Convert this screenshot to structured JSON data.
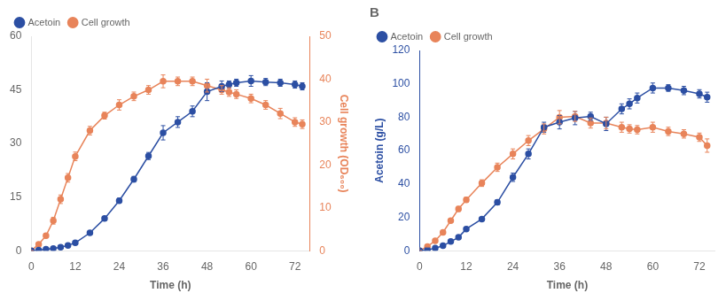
{
  "chart_data": [
    {
      "type": "line",
      "x": [
        0,
        2,
        4,
        6,
        8,
        10,
        12,
        16,
        20,
        24,
        28,
        32,
        36,
        40,
        44,
        48,
        52,
        54,
        56,
        60,
        64,
        68,
        72,
        74
      ],
      "xlabel": "Time (h)",
      "xlim": [
        0,
        76
      ],
      "xticks": [
        0,
        12,
        24,
        36,
        48,
        60,
        72
      ],
      "ylim": [
        0,
        60
      ],
      "yticks": [
        0,
        15,
        30,
        45,
        60
      ],
      "y2label": "Cell growth (OD₆₀₀)",
      "y2lim": [
        0,
        50
      ],
      "y2ticks": [
        0,
        10,
        20,
        30,
        40,
        50
      ],
      "grid": false,
      "legend": "upper left",
      "series": [
        {
          "name": "Acetoin",
          "color": "#2c4fa3",
          "marker": "o",
          "line_style": "solid",
          "values": [
            0,
            0.2,
            0.4,
            0.6,
            1.0,
            1.5,
            2.2,
            5.0,
            9.0,
            14.0,
            20.0,
            26.5,
            33.0,
            36.0,
            39.0,
            44.5,
            46.0,
            46.5,
            47.0,
            47.5,
            47.2,
            47.0,
            46.5,
            46.0
          ],
          "errors": [
            0,
            0.1,
            0.1,
            0.1,
            0.1,
            0.2,
            0.3,
            0.4,
            0.6,
            0.7,
            0.8,
            1.0,
            2.0,
            1.5,
            1.5,
            2.5,
            1.5,
            1.0,
            1.0,
            1.5,
            1.0,
            1.0,
            1.0,
            1.0
          ]
        },
        {
          "name": "Cell growth",
          "color": "#e8845a",
          "marker": "o",
          "line_style": "solid",
          "axis": "y2",
          "values": [
            0,
            1.5,
            3.5,
            7.0,
            12.0,
            17.0,
            22.0,
            28.0,
            31.5,
            34.0,
            36.0,
            37.5,
            39.5,
            39.5,
            39.5,
            38.5,
            37.5,
            37.0,
            36.5,
            35.5,
            34.0,
            32.0,
            30.0,
            29.5
          ],
          "errors": [
            0,
            0.3,
            0.5,
            0.8,
            1.0,
            1.0,
            1.0,
            1.0,
            0.8,
            1.2,
            1.0,
            1.0,
            1.5,
            1.0,
            1.0,
            1.5,
            1.0,
            1.0,
            1.0,
            1.0,
            1.0,
            1.2,
            1.0,
            1.0
          ]
        }
      ]
    },
    {
      "type": "line",
      "title": "B",
      "x": [
        0,
        2,
        4,
        6,
        8,
        10,
        12,
        16,
        20,
        24,
        28,
        32,
        36,
        40,
        44,
        48,
        52,
        54,
        56,
        60,
        64,
        68,
        72,
        74
      ],
      "xlabel": "Time (h)",
      "xlim": [
        0,
        76
      ],
      "xticks": [
        0,
        12,
        24,
        36,
        48,
        60,
        72
      ],
      "ylabel": "Acetoin (g/L)",
      "ylim": [
        0,
        120
      ],
      "yticks": [
        0,
        20,
        40,
        60,
        80,
        100,
        120
      ],
      "grid": false,
      "legend": "upper left",
      "series": [
        {
          "name": "Acetoin",
          "color": "#2c4fa3",
          "marker": "o",
          "line_style": "solid",
          "values": [
            0,
            0.5,
            1.5,
            3.0,
            5.5,
            8.0,
            13.0,
            19.0,
            29.0,
            44.0,
            58.0,
            74.0,
            77.0,
            79.5,
            80.5,
            76.0,
            85.0,
            88.0,
            91.5,
            97.5,
            97.5,
            96.0,
            94.0,
            92.0
          ],
          "errors": [
            0,
            0.1,
            0.2,
            0.3,
            0.4,
            0.5,
            0.8,
            1.0,
            1.5,
            2.5,
            3.0,
            3.0,
            4.0,
            4.0,
            2.5,
            4.0,
            3.0,
            3.0,
            3.0,
            3.0,
            2.0,
            2.5,
            2.5,
            3.0
          ]
        },
        {
          "name": "Cell growth",
          "color": "#e8845a",
          "marker": "o",
          "line_style": "solid",
          "values": [
            0,
            2.5,
            6.0,
            11.0,
            18.0,
            25.0,
            30.5,
            40.5,
            50.0,
            58.0,
            66.0,
            73.0,
            80.0,
            80.5,
            76.5,
            76.5,
            74.0,
            73.0,
            72.5,
            74.0,
            71.5,
            70.0,
            68.0,
            63.0
          ],
          "errors": [
            0,
            0.3,
            0.5,
            0.8,
            1.0,
            1.5,
            1.5,
            2.0,
            2.5,
            3.0,
            3.0,
            3.0,
            4.0,
            3.0,
            3.0,
            3.5,
            3.0,
            2.5,
            2.5,
            3.0,
            2.5,
            2.5,
            2.5,
            4.0
          ]
        }
      ]
    }
  ]
}
